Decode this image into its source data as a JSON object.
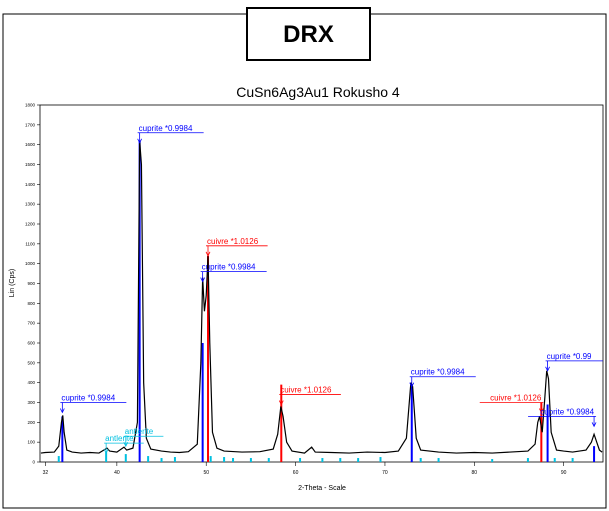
{
  "header": {
    "title": "DRX"
  },
  "chart_data": {
    "type": "line",
    "title": "CuSn6Ag3Au1 Rokusho 4",
    "xlabel": "2-Theta - Scale",
    "ylabel": "Lin (Cps)",
    "xlim": [
      31.4,
      94.4
    ],
    "ylim": [
      0,
      1800
    ],
    "xticks": [
      32,
      40,
      50,
      60,
      70,
      80,
      90
    ],
    "yticks": [
      0,
      100,
      200,
      300,
      400,
      500,
      600,
      700,
      800,
      900,
      1000,
      1100,
      1200,
      1300,
      1400,
      1500,
      1600,
      1700,
      1800
    ],
    "series": [
      {
        "color": "#000000",
        "x": [
          31.5,
          32,
          33,
          33.5,
          33.8,
          33.95,
          34.1,
          34.4,
          35,
          36,
          37,
          38,
          38.9,
          39.2,
          40,
          40.8,
          41.1,
          41.8,
          42.3,
          42.55,
          42.75,
          43,
          43.3,
          43.8,
          45,
          46,
          47,
          48,
          49,
          49.4,
          49.6,
          49.8,
          50.0,
          50.2,
          50.4,
          50.7,
          51.2,
          52,
          54,
          56,
          57.5,
          58,
          58.35,
          58.6,
          59,
          59.6,
          61,
          61.8,
          62.2,
          64,
          66,
          68,
          70,
          71.5,
          72.4,
          72.9,
          73.1,
          73.5,
          74,
          76,
          78,
          80,
          82,
          84,
          86,
          86.8,
          87.1,
          87.3,
          87.6,
          87.9,
          88.1,
          88.3,
          88.6,
          89.2,
          90,
          91,
          92.5,
          93.1,
          93.4,
          93.7,
          94,
          94.3
        ],
        "values": [
          45,
          48,
          50,
          80,
          200,
          235,
          150,
          60,
          50,
          45,
          48,
          45,
          70,
          55,
          50,
          75,
          60,
          70,
          200,
          1620,
          1500,
          400,
          120,
          65,
          55,
          50,
          48,
          52,
          90,
          500,
          930,
          760,
          840,
          1040,
          600,
          150,
          70,
          55,
          50,
          52,
          65,
          140,
          280,
          230,
          100,
          55,
          45,
          75,
          50,
          48,
          45,
          50,
          48,
          55,
          120,
          400,
          380,
          120,
          60,
          50,
          45,
          48,
          45,
          50,
          55,
          90,
          200,
          230,
          150,
          330,
          460,
          420,
          150,
          60,
          55,
          50,
          60,
          100,
          140,
          100,
          60,
          50
        ]
      }
    ],
    "sticks": [
      {
        "color": "#0000ff",
        "x": [
          33.9,
          42.55,
          49.6,
          73.0,
          88.2,
          93.4
        ],
        "values": [
          230,
          1620,
          600,
          380,
          290,
          80
        ]
      },
      {
        "color": "#ff0000",
        "x": [
          50.2,
          58.4,
          87.5
        ],
        "values": [
          1040,
          390,
          300
        ]
      },
      {
        "color": "#00c0e0",
        "x": [
          33.5,
          38.8,
          41.0,
          43.5,
          45,
          46.5,
          50.5,
          52,
          53,
          55,
          57,
          60.5,
          63,
          65,
          67,
          69.5,
          74,
          76,
          82,
          86,
          89,
          91
        ],
        "values": [
          30,
          50,
          40,
          30,
          20,
          25,
          30,
          25,
          20,
          20,
          20,
          20,
          20,
          20,
          20,
          25,
          20,
          20,
          15,
          20,
          20,
          20
        ]
      }
    ],
    "annotations": [
      {
        "text": "cuprite *0.9984",
        "x": 33.9,
        "y": 300,
        "color": "#0000ff"
      },
      {
        "text": "antlerite",
        "x": 41.0,
        "y": 130,
        "color": "#00c0e0"
      },
      {
        "text": "antlerite",
        "x": 38.8,
        "y": 95,
        "color": "#00c0e0"
      },
      {
        "text": "cuprite *0.9984",
        "x": 42.55,
        "y": 1660,
        "color": "#0000ff"
      },
      {
        "text": "cuprite *0.9984",
        "x": 49.6,
        "y": 960,
        "color": "#0000ff"
      },
      {
        "text": "cuivre *1.0126",
        "x": 50.2,
        "y": 1090,
        "color": "#ff0000"
      },
      {
        "text": "cuivre *1.0126",
        "x": 58.4,
        "y": 340,
        "color": "#ff0000"
      },
      {
        "text": "cuprite *0.9984",
        "x": 73.0,
        "y": 430,
        "color": "#0000ff"
      },
      {
        "text": "cuivre *1.0126",
        "x": 87.5,
        "y": 300,
        "color": "#ff0000"
      },
      {
        "text": "cuprite *0.99",
        "x": 88.2,
        "y": 510,
        "color": "#0000ff"
      },
      {
        "text": "cuprite *0.9984",
        "x": 93.4,
        "y": 230,
        "color": "#0000ff"
      }
    ]
  }
}
